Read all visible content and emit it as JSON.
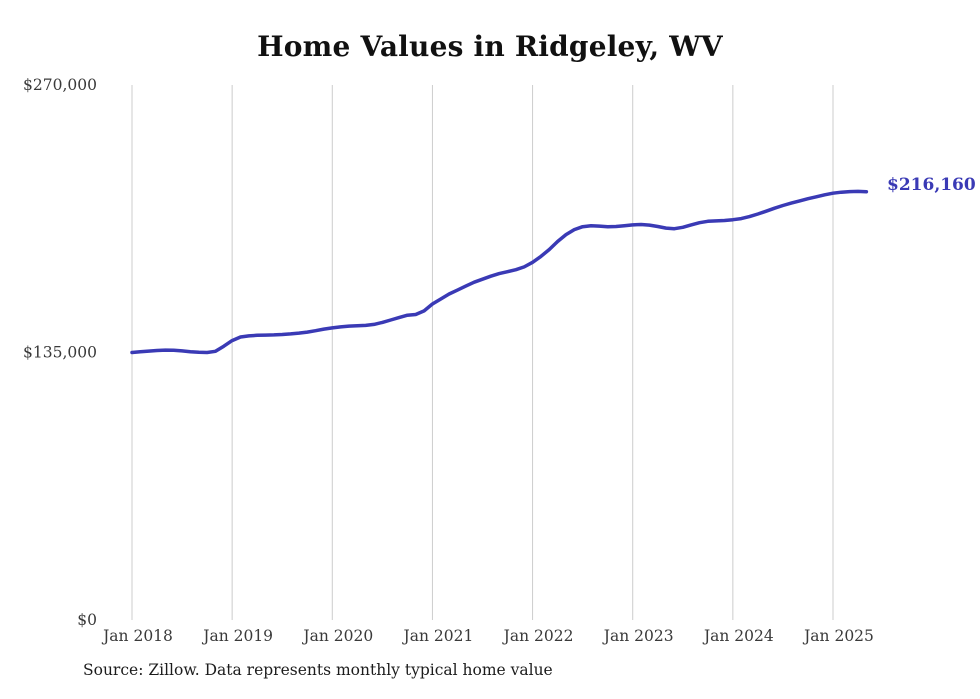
{
  "title": "Home Values in Ridgeley, WV",
  "end_label": "$216,160",
  "source_note": "Source: Zillow. Data represents monthly typical home value",
  "colors": {
    "line": "#3A3AB5",
    "end_label": "#3A3AB5",
    "grid": "#cccccc",
    "axis_text": "#3a3a3a",
    "title_text": "#111111"
  },
  "chart_data": {
    "type": "line",
    "title": "Home Values in Ridgeley, WV",
    "ylabel": "",
    "xlabel": "",
    "ylim": [
      0,
      270000
    ],
    "grid": "vertical-only",
    "legend": "none",
    "end_annotation": "$216,160",
    "y_ticks": [
      0,
      135000,
      270000
    ],
    "y_tick_labels": [
      "$0",
      "$135,000",
      "$270,000"
    ],
    "x_tick_labels": [
      "Jan 2018",
      "Jan 2019",
      "Jan 2020",
      "Jan 2021",
      "Jan 2022",
      "Jan 2023",
      "Jan 2024",
      "Jan 2025"
    ],
    "x": [
      "2018-01",
      "2018-02",
      "2018-03",
      "2018-04",
      "2018-05",
      "2018-06",
      "2018-07",
      "2018-08",
      "2018-09",
      "2018-10",
      "2018-11",
      "2018-12",
      "2019-01",
      "2019-02",
      "2019-03",
      "2019-04",
      "2019-05",
      "2019-06",
      "2019-07",
      "2019-08",
      "2019-09",
      "2019-10",
      "2019-11",
      "2019-12",
      "2020-01",
      "2020-02",
      "2020-03",
      "2020-04",
      "2020-05",
      "2020-06",
      "2020-07",
      "2020-08",
      "2020-09",
      "2020-10",
      "2020-11",
      "2020-12",
      "2021-01",
      "2021-02",
      "2021-03",
      "2021-04",
      "2021-05",
      "2021-06",
      "2021-07",
      "2021-08",
      "2021-09",
      "2021-10",
      "2021-11",
      "2021-12",
      "2022-01",
      "2022-02",
      "2022-03",
      "2022-04",
      "2022-05",
      "2022-06",
      "2022-07",
      "2022-08",
      "2022-09",
      "2022-10",
      "2022-11",
      "2022-12",
      "2023-01",
      "2023-02",
      "2023-03",
      "2023-04",
      "2023-05",
      "2023-06",
      "2023-07",
      "2023-08",
      "2023-09",
      "2023-10",
      "2023-11",
      "2023-12",
      "2024-01",
      "2024-02",
      "2024-03",
      "2024-04",
      "2024-05",
      "2024-06",
      "2024-07",
      "2024-08",
      "2024-09",
      "2024-10",
      "2024-11",
      "2024-12",
      "2025-01",
      "2025-02",
      "2025-03",
      "2025-04",
      "2025-05"
    ],
    "values": [
      135000,
      135400,
      135700,
      136000,
      136200,
      136100,
      135800,
      135400,
      135100,
      135000,
      135600,
      138200,
      141000,
      142800,
      143400,
      143700,
      143800,
      143900,
      144100,
      144400,
      144800,
      145300,
      146000,
      146800,
      147400,
      147900,
      148300,
      148500,
      148700,
      149200,
      150200,
      151400,
      152600,
      153800,
      154200,
      156000,
      159500,
      162000,
      164500,
      166500,
      168500,
      170500,
      172000,
      173500,
      174800,
      175800,
      176800,
      178200,
      180500,
      183500,
      187000,
      191000,
      194500,
      197000,
      198500,
      199000,
      198800,
      198500,
      198600,
      199000,
      199400,
      199600,
      199300,
      198600,
      197800,
      197500,
      198200,
      199400,
      200500,
      201200,
      201400,
      201600,
      202000,
      202600,
      203600,
      204900,
      206300,
      207800,
      209200,
      210400,
      211500,
      212600,
      213600,
      214600,
      215400,
      215900,
      216200,
      216300,
      216160
    ]
  }
}
